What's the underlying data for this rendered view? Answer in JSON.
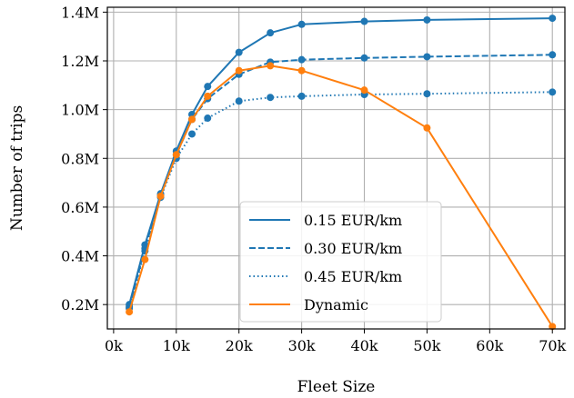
{
  "chart_data": {
    "type": "line",
    "xlabel": "Fleet Size",
    "ylabel": "Number of trips",
    "xlim": [
      -1000,
      72000
    ],
    "ylim": [
      100000,
      1420000
    ],
    "x_ticks": [
      0,
      10000,
      20000,
      30000,
      40000,
      50000,
      60000,
      70000
    ],
    "x_tick_labels": [
      "0k",
      "10k",
      "20k",
      "30k",
      "40k",
      "50k",
      "60k",
      "70k"
    ],
    "y_ticks": [
      200000,
      400000,
      600000,
      800000,
      1000000,
      1200000,
      1400000
    ],
    "y_tick_labels": [
      "0.2M",
      "0.4M",
      "0.6M",
      "0.8M",
      "1.0M",
      "1.2M",
      "1.4M"
    ],
    "grid": true,
    "legend_position": "lower-center",
    "series": [
      {
        "name": "0.15 EUR/km",
        "color": "#1f77b4",
        "dash": "solid",
        "x": [
          2500,
          5000,
          7500,
          10000,
          12500,
          15000,
          20000,
          25000,
          30000,
          40000,
          50000,
          70000
        ],
        "values": [
          200000,
          445000,
          655000,
          830000,
          980000,
          1095000,
          1235000,
          1315000,
          1350000,
          1362000,
          1368000,
          1375000
        ]
      },
      {
        "name": "0.30 EUR/km",
        "color": "#1f77b4",
        "dash": "dashed",
        "x": [
          2500,
          5000,
          7500,
          10000,
          12500,
          15000,
          20000,
          25000,
          30000,
          40000,
          50000,
          70000
        ],
        "values": [
          190000,
          430000,
          648000,
          815000,
          960000,
          1045000,
          1145000,
          1195000,
          1205000,
          1212000,
          1217000,
          1225000
        ]
      },
      {
        "name": "0.45 EUR/km",
        "color": "#1f77b4",
        "dash": "dotted",
        "x": [
          2500,
          5000,
          7500,
          10000,
          12500,
          15000,
          20000,
          25000,
          30000,
          40000,
          50000,
          70000
        ],
        "values": [
          185000,
          420000,
          640000,
          800000,
          900000,
          965000,
          1035000,
          1050000,
          1055000,
          1062000,
          1065000,
          1072000
        ]
      },
      {
        "name": "Dynamic",
        "color": "#ff7f0e",
        "dash": "solid",
        "x": [
          2500,
          5000,
          7500,
          10000,
          12500,
          15000,
          20000,
          25000,
          30000,
          40000,
          50000,
          70000
        ],
        "values": [
          170000,
          385000,
          645000,
          815000,
          960000,
          1055000,
          1160000,
          1180000,
          1160000,
          1080000,
          925000,
          110000
        ]
      }
    ]
  }
}
